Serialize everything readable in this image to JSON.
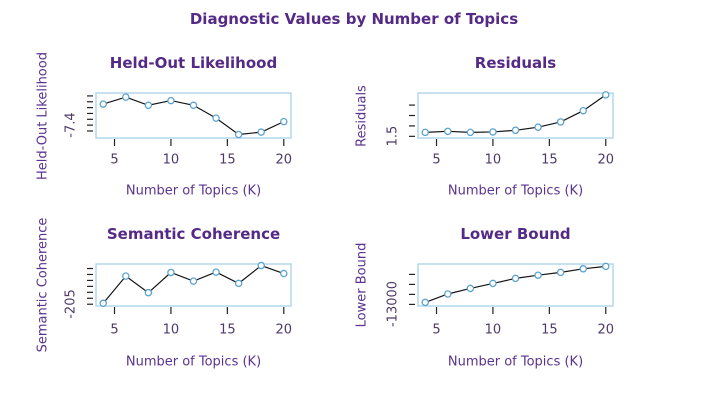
{
  "page_title": "Diagnostic Values by Number of Topics",
  "colors": {
    "title": "#542a86",
    "axis_label": "#5a3391",
    "tick_text": "#4d3a68",
    "box_border": "#a8d3e8",
    "marker": "#5ba3cf",
    "line": "#141414",
    "tick_mark": "#222222",
    "background": "#ffffff"
  },
  "chart_data": [
    {
      "type": "line",
      "title": "Held-Out Likelihood",
      "ylabel": "Held-Out Likelihood",
      "xlabel": "Number of Topics (K)",
      "marker": "open-circle",
      "x": [
        4,
        6,
        8,
        10,
        12,
        14,
        16,
        18,
        20
      ],
      "values": [
        -7.22,
        -7.16,
        -7.23,
        -7.19,
        -7.23,
        -7.34,
        -7.48,
        -7.46,
        -7.37
      ],
      "xlim": [
        3.36,
        20.64
      ],
      "ylim": [
        -7.51,
        -7.125
      ],
      "xticks": [
        5,
        10,
        15,
        20
      ],
      "yticks": [
        -7.45,
        -7.4,
        -7.35,
        -7.3,
        -7.25,
        -7.2,
        -7.15
      ],
      "ytick_label": "-7.4",
      "ytick_label_value": -7.4,
      "grid": false
    },
    {
      "type": "line",
      "title": "Residuals",
      "ylabel": "Residuals",
      "xlabel": "Number of Topics (K)",
      "marker": "open-circle",
      "x": [
        4,
        6,
        8,
        10,
        12,
        14,
        16,
        18,
        20
      ],
      "values": [
        1.69,
        1.74,
        1.69,
        1.71,
        1.79,
        1.94,
        2.19,
        2.73,
        3.49
      ],
      "xlim": [
        3.36,
        20.64
      ],
      "ylim": [
        1.42,
        3.58
      ],
      "xticks": [
        5,
        10,
        15,
        20
      ],
      "yticks": [
        1.5,
        2.0,
        2.5,
        3.0
      ],
      "ytick_label": "1.5",
      "ytick_label_value": 1.5,
      "grid": false
    },
    {
      "type": "line",
      "title": "Semantic Coherence",
      "ylabel": "Semantic Coherence",
      "xlabel": "Number of Topics (K)",
      "marker": "open-circle",
      "x": [
        4,
        6,
        8,
        10,
        12,
        14,
        16,
        18,
        20
      ],
      "values": [
        -204.2,
        -181.4,
        -195.3,
        -178.3,
        -185.6,
        -178.0,
        -187.5,
        -172.5,
        -179.2
      ],
      "xlim": [
        3.36,
        20.64
      ],
      "ylim": [
        -206.5,
        -171.2
      ],
      "xticks": [
        5,
        10,
        15,
        20
      ],
      "yticks": [
        -205,
        -200,
        -195,
        -190,
        -185,
        -180,
        -175
      ],
      "ytick_label": "-205",
      "ytick_label_value": -205,
      "grid": false
    },
    {
      "type": "line",
      "title": "Lower Bound",
      "ylabel": "Lower Bound",
      "xlabel": "Number of Topics (K)",
      "marker": "open-circle",
      "x": [
        4,
        6,
        8,
        10,
        12,
        14,
        16,
        18,
        20
      ],
      "values": [
        -12900,
        -12480,
        -12200,
        -11950,
        -11700,
        -11540,
        -11400,
        -11220,
        -11100
      ],
      "xlim": [
        3.36,
        20.64
      ],
      "ylim": [
        -13080,
        -10980
      ],
      "xticks": [
        5,
        10,
        15,
        20
      ],
      "yticks": [
        -13000,
        -12500,
        -12000,
        -11500
      ],
      "ytick_label": "-13000",
      "ytick_label_value": -13000,
      "grid": false
    }
  ]
}
